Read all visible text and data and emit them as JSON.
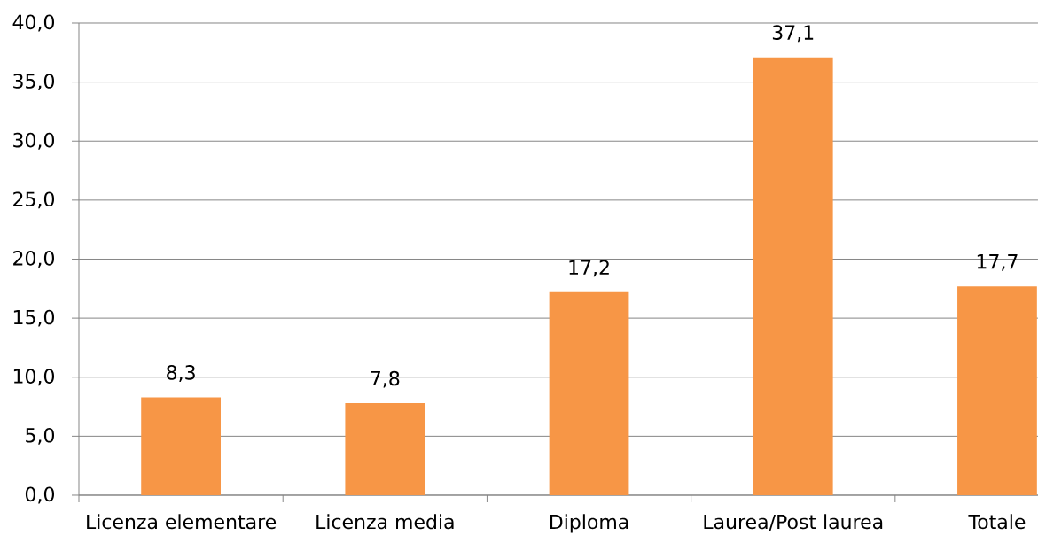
{
  "chart_data": {
    "type": "bar",
    "categories": [
      "Licenza elementare",
      "Licenza media",
      "Diploma",
      "Laurea/Post laurea",
      "Totale"
    ],
    "values": [
      8.3,
      7.8,
      17.2,
      37.1,
      17.7
    ],
    "color": "#f79646",
    "value_labels": [
      "8,3",
      "7,8",
      "17,2",
      "37,1",
      "17,7"
    ],
    "ylim": [
      0,
      40
    ],
    "yticks": [
      {
        "value": 0,
        "label": "0,0"
      },
      {
        "value": 5,
        "label": "5,0"
      },
      {
        "value": 10,
        "label": "10,0"
      },
      {
        "value": 15,
        "label": "15,0"
      },
      {
        "value": 20,
        "label": "20,0"
      },
      {
        "value": 25,
        "label": "25,0"
      },
      {
        "value": 30,
        "label": "30,0"
      },
      {
        "value": 35,
        "label": "35,0"
      },
      {
        "value": 40,
        "label": "40,0"
      }
    ],
    "grid": "y"
  }
}
